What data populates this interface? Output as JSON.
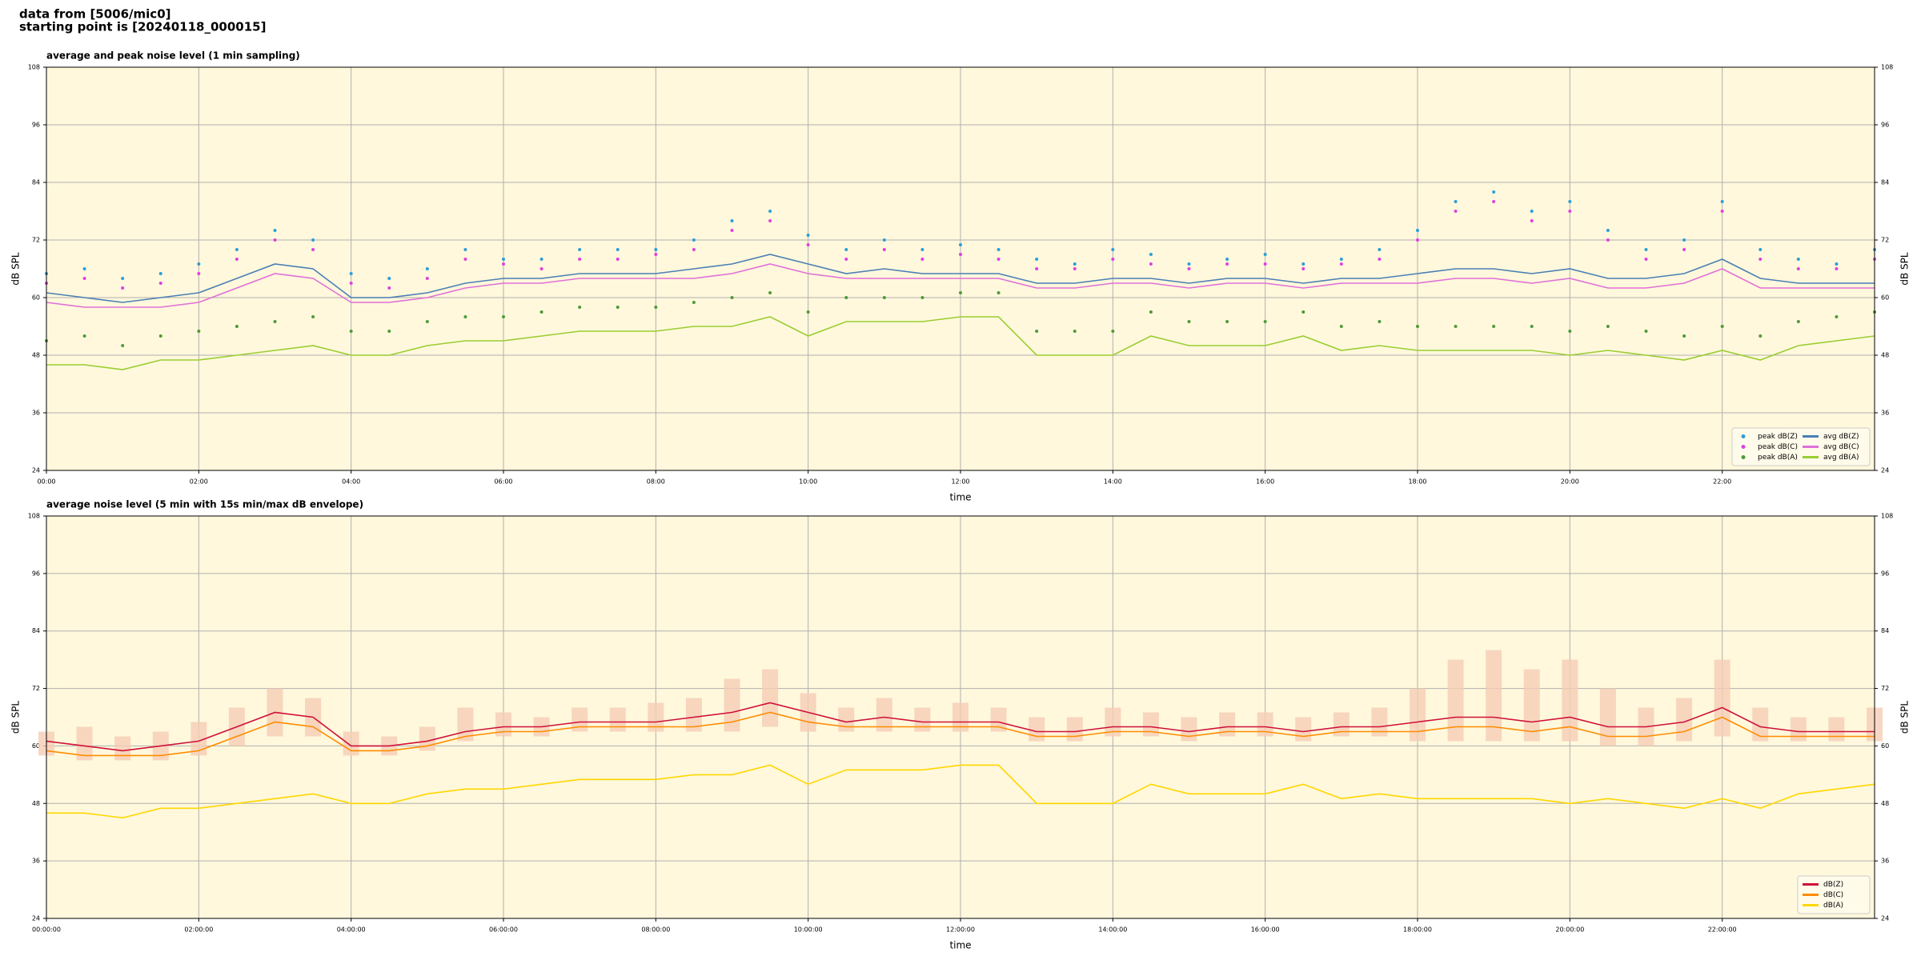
{
  "header": {
    "line1": "data from [5006/mic0]",
    "line2": "starting point is [20240118_000015]"
  },
  "chart_data": [
    {
      "type": "line",
      "title": "average and peak noise level (1 min sampling)",
      "xlabel": "time",
      "ylabel": "dB SPL",
      "background": "#fff8dc",
      "grid": true,
      "legend": "lower right",
      "xlim": [
        0,
        24
      ],
      "ylim": [
        24,
        108
      ],
      "yticks": [
        24,
        36,
        48,
        60,
        72,
        84,
        96,
        108
      ],
      "xticks": [
        {
          "value": 0,
          "label": "00:00"
        },
        {
          "value": 2,
          "label": "02:00"
        },
        {
          "value": 4,
          "label": "04:00"
        },
        {
          "value": 6,
          "label": "06:00"
        },
        {
          "value": 8,
          "label": "08:00"
        },
        {
          "value": 10,
          "label": "10:00"
        },
        {
          "value": 12,
          "label": "12:00"
        },
        {
          "value": 14,
          "label": "14:00"
        },
        {
          "value": 16,
          "label": "16:00"
        },
        {
          "value": 18,
          "label": "18:00"
        },
        {
          "value": 20,
          "label": "20:00"
        },
        {
          "value": 22,
          "label": "22:00"
        }
      ],
      "x": [
        0,
        0.5,
        1,
        1.5,
        2,
        2.5,
        3,
        3.5,
        4,
        4.5,
        5,
        5.5,
        6,
        6.5,
        7,
        7.5,
        8,
        8.5,
        9,
        9.5,
        10,
        10.5,
        11,
        11.5,
        12,
        12.5,
        13,
        13.5,
        14,
        14.5,
        15,
        15.5,
        16,
        16.5,
        17,
        17.5,
        18,
        18.5,
        19,
        19.5,
        20,
        20.5,
        21,
        21.5,
        22,
        22.5,
        23,
        23.5,
        24
      ],
      "series": [
        {
          "name": "peak dB(Z)",
          "style": "dots",
          "color": "#2b9fd9",
          "values": [
            65,
            66,
            64,
            65,
            67,
            70,
            74,
            72,
            65,
            64,
            66,
            70,
            68,
            68,
            70,
            70,
            70,
            72,
            76,
            78,
            73,
            70,
            72,
            70,
            71,
            70,
            68,
            67,
            70,
            69,
            67,
            68,
            69,
            67,
            68,
            70,
            74,
            80,
            82,
            78,
            80,
            74,
            70,
            72,
            80,
            70,
            68,
            67,
            70
          ]
        },
        {
          "name": "peak dB(C)",
          "style": "dots",
          "color": "#e040e0",
          "values": [
            63,
            64,
            62,
            63,
            65,
            68,
            72,
            70,
            63,
            62,
            64,
            68,
            67,
            66,
            68,
            68,
            69,
            70,
            74,
            76,
            71,
            68,
            70,
            68,
            69,
            68,
            66,
            66,
            68,
            67,
            66,
            67,
            67,
            66,
            67,
            68,
            72,
            78,
            80,
            76,
            78,
            72,
            68,
            70,
            78,
            68,
            66,
            66,
            68
          ]
        },
        {
          "name": "peak dB(A)",
          "style": "dots",
          "color": "#4f9a3a",
          "values": [
            51,
            52,
            50,
            52,
            53,
            54,
            55,
            56,
            53,
            53,
            55,
            56,
            56,
            57,
            58,
            58,
            58,
            59,
            60,
            61,
            57,
            60,
            60,
            60,
            61,
            61,
            53,
            53,
            53,
            57,
            55,
            55,
            55,
            57,
            54,
            55,
            54,
            54,
            54,
            54,
            53,
            54,
            53,
            52,
            54,
            52,
            55,
            56,
            57
          ]
        },
        {
          "name": "avg dB(Z)",
          "style": "line",
          "color": "#4a7fb5",
          "values": [
            61,
            60,
            59,
            60,
            61,
            64,
            67,
            66,
            60,
            60,
            61,
            63,
            64,
            64,
            65,
            65,
            65,
            66,
            67,
            69,
            67,
            65,
            66,
            65,
            65,
            65,
            63,
            63,
            64,
            64,
            63,
            64,
            64,
            63,
            64,
            64,
            65,
            66,
            66,
            65,
            66,
            64,
            64,
            65,
            68,
            64,
            63,
            63,
            63
          ]
        },
        {
          "name": "avg dB(C)",
          "style": "line",
          "color": "#e070d8",
          "values": [
            59,
            58,
            58,
            58,
            59,
            62,
            65,
            64,
            59,
            59,
            60,
            62,
            63,
            63,
            64,
            64,
            64,
            64,
            65,
            67,
            65,
            64,
            64,
            64,
            64,
            64,
            62,
            62,
            63,
            63,
            62,
            63,
            63,
            62,
            63,
            63,
            63,
            64,
            64,
            63,
            64,
            62,
            62,
            63,
            66,
            62,
            62,
            62,
            62
          ]
        },
        {
          "name": "avg dB(A)",
          "style": "line",
          "color": "#9acd32",
          "values": [
            46,
            46,
            45,
            47,
            47,
            48,
            49,
            50,
            48,
            48,
            50,
            51,
            51,
            52,
            53,
            53,
            53,
            54,
            54,
            56,
            52,
            55,
            55,
            55,
            56,
            56,
            48,
            48,
            48,
            52,
            50,
            50,
            50,
            52,
            49,
            50,
            49,
            49,
            49,
            49,
            48,
            49,
            48,
            47,
            49,
            47,
            50,
            51,
            52
          ]
        }
      ]
    },
    {
      "type": "line",
      "title": "average noise level (5 min with 15s min/max dB envelope)",
      "xlabel": "time",
      "ylabel": "dB SPL",
      "background": "#fff8dc",
      "grid": true,
      "legend": "lower right",
      "xlim": [
        0,
        24
      ],
      "ylim": [
        24,
        108
      ],
      "yticks": [
        24,
        36,
        48,
        60,
        72,
        84,
        96,
        108
      ],
      "xticks": [
        {
          "value": 0,
          "label": "00:00:00"
        },
        {
          "value": 2,
          "label": "02:00:00"
        },
        {
          "value": 4,
          "label": "04:00:00"
        },
        {
          "value": 6,
          "label": "06:00:00"
        },
        {
          "value": 8,
          "label": "08:00:00"
        },
        {
          "value": 10,
          "label": "10:00:00"
        },
        {
          "value": 12,
          "label": "12:00:00"
        },
        {
          "value": 14,
          "label": "14:00:00"
        },
        {
          "value": 16,
          "label": "16:00:00"
        },
        {
          "value": 18,
          "label": "18:00:00"
        },
        {
          "value": 20,
          "label": "20:00:00"
        },
        {
          "value": 22,
          "label": "22:00:00"
        }
      ],
      "x": [
        0,
        0.5,
        1,
        1.5,
        2,
        2.5,
        3,
        3.5,
        4,
        4.5,
        5,
        5.5,
        6,
        6.5,
        7,
        7.5,
        8,
        8.5,
        9,
        9.5,
        10,
        10.5,
        11,
        11.5,
        12,
        12.5,
        13,
        13.5,
        14,
        14.5,
        15,
        15.5,
        16,
        16.5,
        17,
        17.5,
        18,
        18.5,
        19,
        19.5,
        20,
        20.5,
        21,
        21.5,
        22,
        22.5,
        23,
        23.5,
        24
      ],
      "band": {
        "color": "#f5cdb5",
        "low": [
          58,
          57,
          57,
          57,
          58,
          60,
          62,
          62,
          58,
          58,
          59,
          61,
          62,
          62,
          63,
          63,
          63,
          63,
          63,
          64,
          63,
          63,
          63,
          63,
          63,
          63,
          61,
          61,
          62,
          62,
          61,
          62,
          62,
          61,
          62,
          62,
          61,
          61,
          61,
          61,
          61,
          60,
          60,
          61,
          62,
          61,
          61,
          61,
          61
        ],
        "high": [
          63,
          64,
          62,
          63,
          65,
          68,
          72,
          70,
          63,
          62,
          64,
          68,
          67,
          66,
          68,
          68,
          69,
          70,
          74,
          76,
          71,
          68,
          70,
          68,
          69,
          68,
          66,
          66,
          68,
          67,
          66,
          67,
          67,
          66,
          67,
          68,
          72,
          78,
          80,
          76,
          78,
          72,
          68,
          70,
          78,
          68,
          66,
          66,
          68
        ]
      },
      "series": [
        {
          "name": "dB(Z)",
          "style": "line",
          "color": "#d0103a",
          "values": [
            61,
            60,
            59,
            60,
            61,
            64,
            67,
            66,
            60,
            60,
            61,
            63,
            64,
            64,
            65,
            65,
            65,
            66,
            67,
            69,
            67,
            65,
            66,
            65,
            65,
            65,
            63,
            63,
            64,
            64,
            63,
            64,
            64,
            63,
            64,
            64,
            65,
            66,
            66,
            65,
            66,
            64,
            64,
            65,
            68,
            64,
            63,
            63,
            63
          ]
        },
        {
          "name": "dB(C)",
          "style": "line",
          "color": "#ff8c00",
          "values": [
            59,
            58,
            58,
            58,
            59,
            62,
            65,
            64,
            59,
            59,
            60,
            62,
            63,
            63,
            64,
            64,
            64,
            64,
            65,
            67,
            65,
            64,
            64,
            64,
            64,
            64,
            62,
            62,
            63,
            63,
            62,
            63,
            63,
            62,
            63,
            63,
            63,
            64,
            64,
            63,
            64,
            62,
            62,
            63,
            66,
            62,
            62,
            62,
            62
          ]
        },
        {
          "name": "dB(A)",
          "style": "line",
          "color": "#ffd700",
          "values": [
            46,
            46,
            45,
            47,
            47,
            48,
            49,
            50,
            48,
            48,
            50,
            51,
            51,
            52,
            53,
            53,
            53,
            54,
            54,
            56,
            52,
            55,
            55,
            55,
            56,
            56,
            48,
            48,
            48,
            52,
            50,
            50,
            50,
            52,
            49,
            50,
            49,
            49,
            49,
            49,
            48,
            49,
            48,
            47,
            49,
            47,
            50,
            51,
            52
          ]
        }
      ]
    }
  ]
}
